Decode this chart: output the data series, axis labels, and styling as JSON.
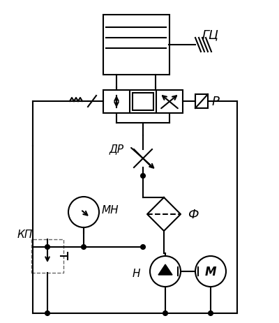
{
  "bg_color": "#ffffff",
  "line_color": "#000000",
  "line_width": 1.5,
  "labels": {
    "GC": "ГЦ",
    "R": "Р",
    "DR": "ДР",
    "MN": "МН",
    "F": "Ф",
    "KP": "КП",
    "N": "Н",
    "M": "М"
  },
  "figsize": [
    4.0,
    4.64
  ],
  "dpi": 100
}
